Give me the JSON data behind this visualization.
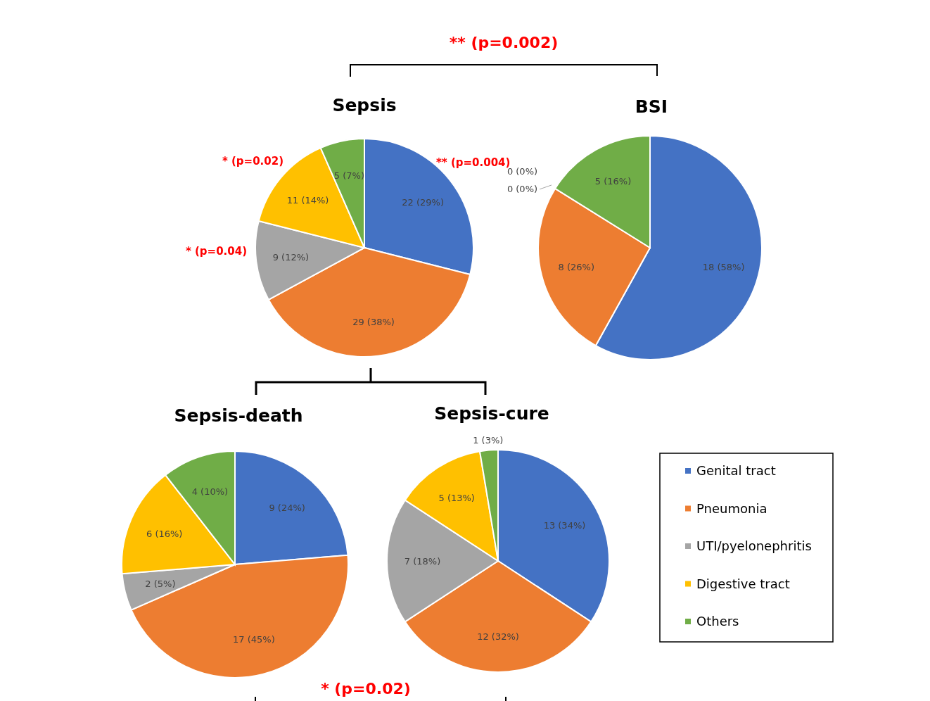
{
  "chart_data": [
    {
      "type": "pie",
      "title": "Sepsis",
      "categories": [
        null,
        null,
        null,
        null,
        null
      ],
      "values": [
        22,
        29,
        9,
        11,
        5
      ],
      "colors": [
        "#4472c4",
        "#ed7d31",
        "#a5a5a5",
        "#ffc000",
        "#70ad47"
      ],
      "value_labels": [
        "22 (29%)",
        "29 (38%)",
        "9 (12%)",
        "11 (14%)",
        "5 (7%)"
      ],
      "annotations": [
        "** (p=0.002)",
        "** (p=0.004)",
        "* (p=0.04)",
        "* (p=0.02)"
      ]
    },
    {
      "type": "pie",
      "title": "BSI",
      "categories": [
        null,
        null,
        null,
        null,
        null
      ],
      "values": [
        18,
        8,
        0,
        0,
        5
      ],
      "colors": [
        "#4472c4",
        "#ed7d31",
        "#a5a5a5",
        "#ffc000",
        "#70ad47"
      ],
      "value_labels": [
        "18 (58%)",
        "8 (26%)",
        "0 (0%)",
        "0 (0%)",
        "5 (16%)"
      ]
    },
    {
      "type": "pie",
      "title": "Sepsis-death",
      "categories": [
        null,
        null,
        null,
        null,
        null
      ],
      "values": [
        9,
        17,
        2,
        6,
        4
      ],
      "colors": [
        "#4472c4",
        "#ed7d31",
        "#a5a5a5",
        "#ffc000",
        "#70ad47"
      ],
      "value_labels": [
        "9 (24%)",
        "17 (45%)",
        "2 (5%)",
        "6 (16%)",
        "4 (10%)"
      ],
      "annotations": [
        "* (p=0.02)"
      ]
    },
    {
      "type": "pie",
      "title": "Sepsis-cure",
      "categories": [
        "Genital tract",
        "Pneumonia",
        "UTI/pyelonephritis",
        "Digestive tract",
        "Others"
      ],
      "values": [
        13,
        12,
        7,
        5,
        1
      ],
      "colors": [
        "#4472c4",
        "#ed7d31",
        "#a5a5a5",
        "#ffc000",
        "#70ad47"
      ],
      "value_labels": [
        "13 (34%)",
        "12 (32%)",
        "7 (18%)",
        "5 (13%)",
        "1 (3%)"
      ],
      "legend": "right"
    }
  ]
}
